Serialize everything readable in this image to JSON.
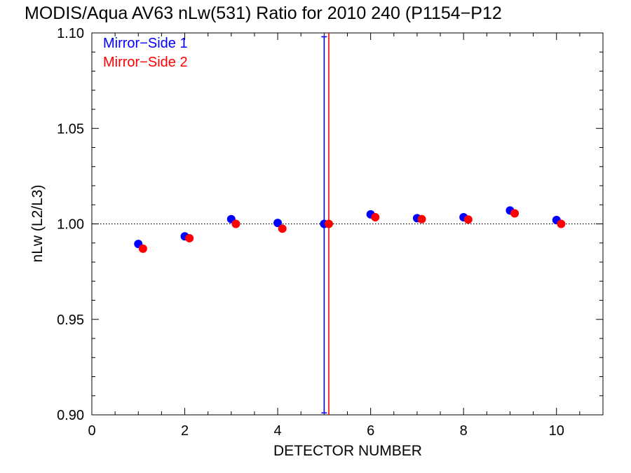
{
  "chart_data": {
    "type": "scatter",
    "title": "MODIS/Aqua AV63 nLw(531) Ratio for 2010 240 (P1154−P12",
    "xlabel": "DETECTOR NUMBER",
    "ylabel": "nLw (L2/L3)",
    "xlim": [
      0,
      11
    ],
    "ylim": [
      0.9,
      1.1
    ],
    "xticks": [
      0,
      2,
      4,
      6,
      8,
      10
    ],
    "xtick_labels": [
      "0",
      "2",
      "4",
      "6",
      "8",
      "10"
    ],
    "yticks": [
      0.9,
      0.95,
      1.0,
      1.05,
      1.1
    ],
    "ytick_labels": [
      "0.90",
      "0.95",
      "1.00",
      "1.05",
      "1.10"
    ],
    "reference_line": 1.0,
    "legend_position": "top-left",
    "grid": false,
    "series": [
      {
        "name": "Mirror−Side 1",
        "color": "#0000ff",
        "x": [
          1,
          2,
          3,
          4,
          5,
          6,
          7,
          8,
          9,
          10
        ],
        "y": [
          0.9895,
          0.9935,
          1.0025,
          1.0005,
          1.0,
          1.005,
          1.003,
          1.0035,
          1.007,
          1.002
        ],
        "error_bar": {
          "x": 5,
          "low": 0.901,
          "high": 1.098
        }
      },
      {
        "name": "Mirror−Side 2",
        "color": "#ff0000",
        "x": [
          1.1,
          2.1,
          3.1,
          4.1,
          5.1,
          6.1,
          7.1,
          8.1,
          9.1,
          10.1
        ],
        "y": [
          0.987,
          0.9925,
          1.0,
          0.9975,
          1.0,
          1.0035,
          1.0025,
          1.0023,
          1.0055,
          1.0
        ],
        "vertical_line": {
          "x": 5.1,
          "low": 0.9,
          "high": 1.1
        }
      }
    ]
  }
}
